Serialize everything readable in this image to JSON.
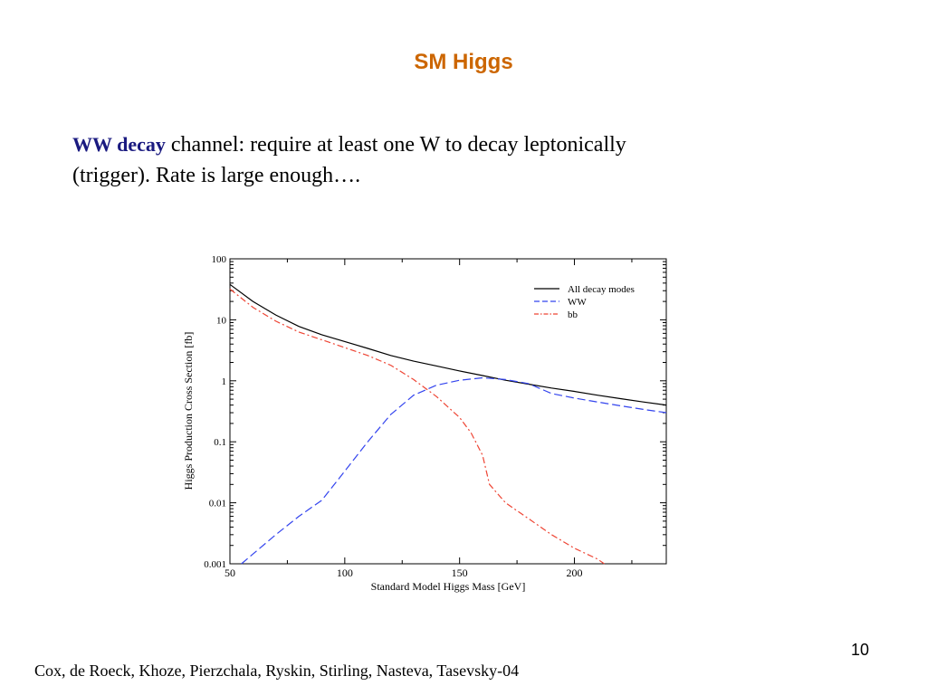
{
  "slide": {
    "title": "SM Higgs",
    "intro_highlight": "WW decay",
    "intro_text": " channel: require at least one W to decay leptonically (trigger). Rate is large enough….",
    "page_number": "10",
    "citation": "Cox, de Roeck, Khoze, Pierzchala, Ryskin, Stirling, Nasteva, Tasevsky-04"
  },
  "chart_data": {
    "type": "line",
    "xlabel": "Standard Model Higgs Mass [GeV]",
    "ylabel": "Higgs Production Cross Section [fb]",
    "xlim": [
      50,
      240
    ],
    "ylim": [
      0.001,
      100
    ],
    "yscale": "log",
    "xticks": [
      50,
      100,
      150,
      200
    ],
    "yticks": [
      100,
      10,
      1,
      0.1,
      0.01,
      0.001
    ],
    "ytick_labels": [
      "100",
      "10",
      "1",
      "0.1",
      "0.01",
      "0.001"
    ],
    "legend_position": "top-right",
    "series": [
      {
        "name": "All decay modes",
        "color": "#000000",
        "dash": "solid",
        "points": [
          [
            50,
            38
          ],
          [
            60,
            20
          ],
          [
            70,
            12
          ],
          [
            80,
            7.8
          ],
          [
            90,
            5.7
          ],
          [
            100,
            4.4
          ],
          [
            110,
            3.4
          ],
          [
            120,
            2.6
          ],
          [
            130,
            2.1
          ],
          [
            140,
            1.75
          ],
          [
            150,
            1.45
          ],
          [
            160,
            1.22
          ],
          [
            170,
            1.02
          ],
          [
            180,
            0.88
          ],
          [
            190,
            0.76
          ],
          [
            200,
            0.67
          ],
          [
            210,
            0.58
          ],
          [
            220,
            0.51
          ],
          [
            230,
            0.45
          ],
          [
            240,
            0.4
          ]
        ]
      },
      {
        "name": "WW",
        "color": "#3344ee",
        "dash": "dashed",
        "points": [
          [
            55,
            0.001
          ],
          [
            70,
            0.003
          ],
          [
            80,
            0.006
          ],
          [
            90,
            0.011
          ],
          [
            100,
            0.033
          ],
          [
            110,
            0.1
          ],
          [
            120,
            0.28
          ],
          [
            130,
            0.58
          ],
          [
            140,
            0.85
          ],
          [
            150,
            1.02
          ],
          [
            160,
            1.12
          ],
          [
            170,
            1.05
          ],
          [
            180,
            0.9
          ],
          [
            190,
            0.62
          ],
          [
            200,
            0.52
          ],
          [
            210,
            0.45
          ],
          [
            220,
            0.39
          ],
          [
            230,
            0.34
          ],
          [
            240,
            0.3
          ]
        ]
      },
      {
        "name": "bb",
        "color": "#ee4433",
        "dash": "dashdot",
        "points": [
          [
            50,
            32
          ],
          [
            60,
            16
          ],
          [
            70,
            9.5
          ],
          [
            80,
            6.3
          ],
          [
            90,
            4.7
          ],
          [
            100,
            3.5
          ],
          [
            110,
            2.6
          ],
          [
            120,
            1.8
          ],
          [
            130,
            1.05
          ],
          [
            140,
            0.55
          ],
          [
            150,
            0.25
          ],
          [
            155,
            0.14
          ],
          [
            160,
            0.06
          ],
          [
            163,
            0.02
          ],
          [
            170,
            0.01
          ],
          [
            180,
            0.0055
          ],
          [
            190,
            0.003
          ],
          [
            200,
            0.0018
          ],
          [
            210,
            0.0012
          ],
          [
            213,
            0.001
          ]
        ]
      }
    ]
  }
}
